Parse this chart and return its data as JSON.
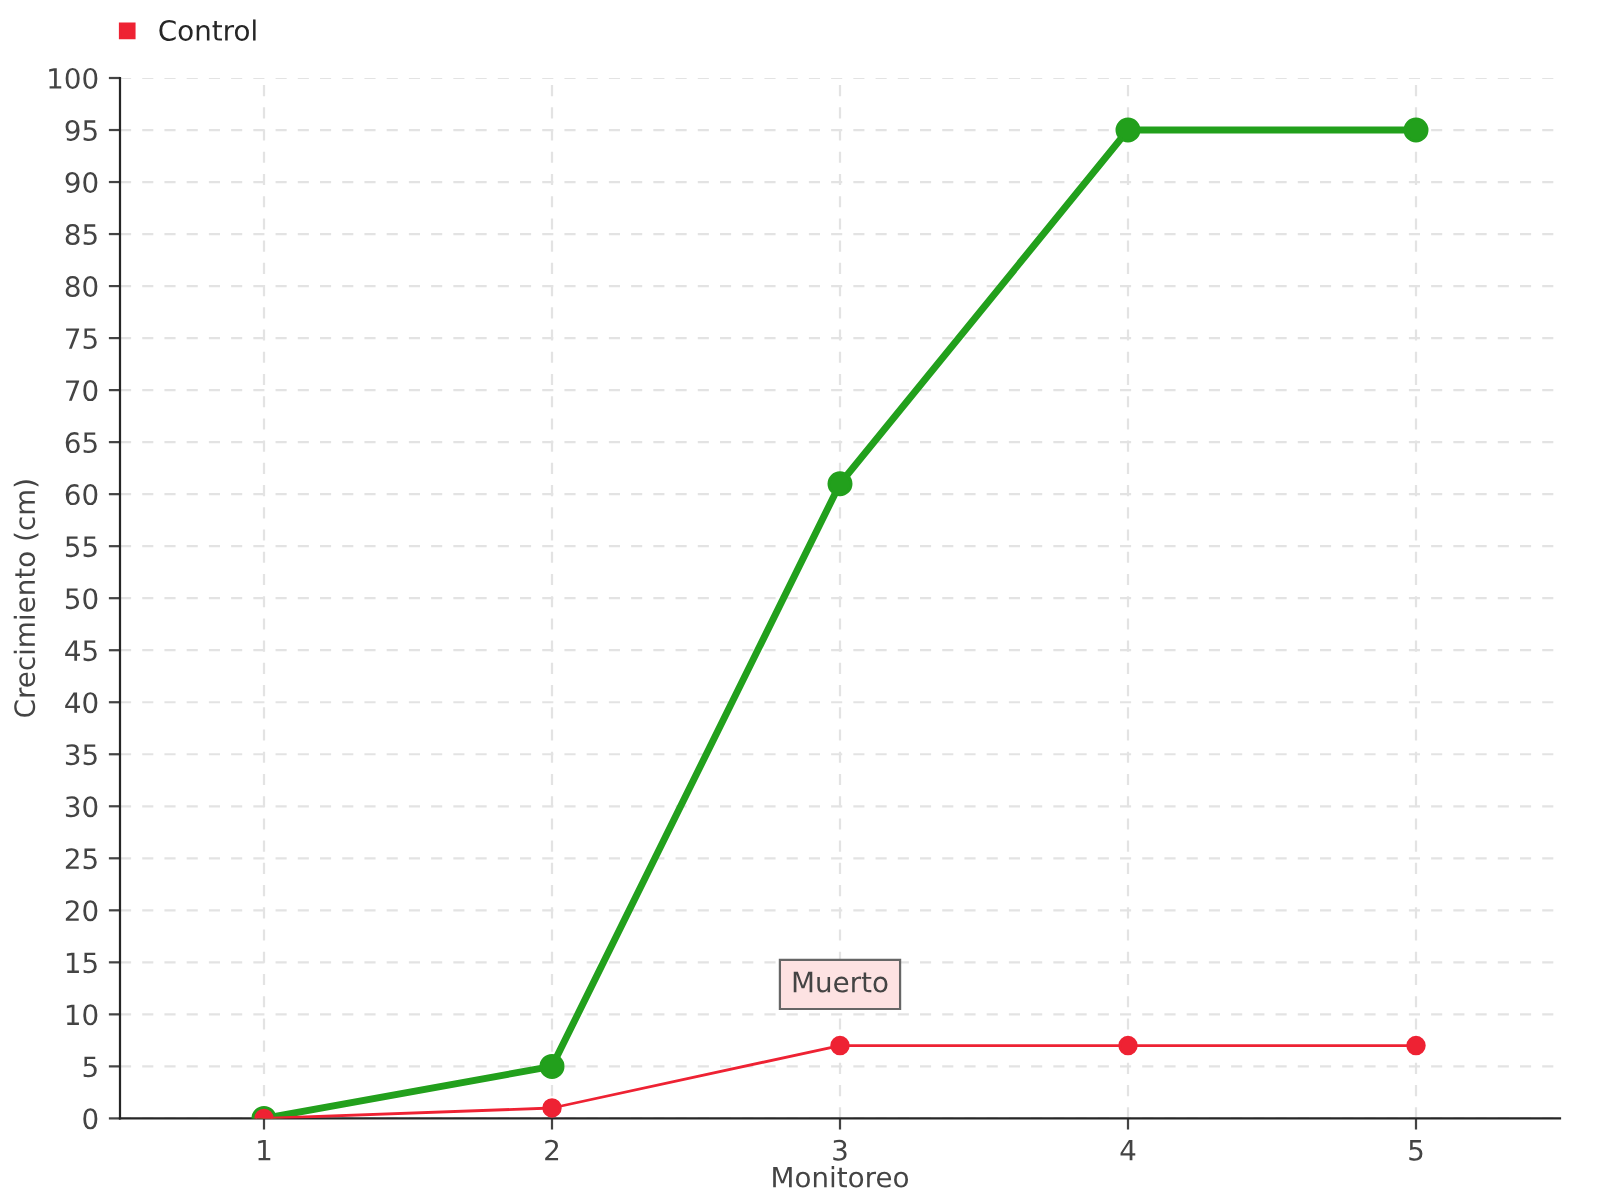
{
  "chart_data": {
    "type": "line",
    "xlabel": "Monitoreo",
    "ylabel": "Crecimiento (cm)",
    "x": [
      1,
      2,
      3,
      4,
      5
    ],
    "series": [
      {
        "color": "#22a01c",
        "values": [
          0,
          5,
          61,
          95,
          95
        ]
      },
      {
        "name": "Control",
        "color": "#ee2233",
        "values": [
          0,
          1,
          7,
          7,
          7
        ]
      }
    ],
    "xlim": [
      0.5,
      5.5
    ],
    "xticks": [
      1,
      2,
      3,
      4,
      5
    ],
    "ylim": [
      0,
      100
    ],
    "yticks": [
      0,
      5,
      10,
      15,
      20,
      25,
      30,
      35,
      40,
      45,
      50,
      55,
      60,
      65,
      70,
      75,
      80,
      85,
      90,
      95,
      100
    ],
    "annotations": [
      {
        "text": "Muerto",
        "x": 3,
        "y": 7
      }
    ],
    "grid": true,
    "legend": "top left",
    "marker": "circle",
    "line_style": "solid"
  }
}
